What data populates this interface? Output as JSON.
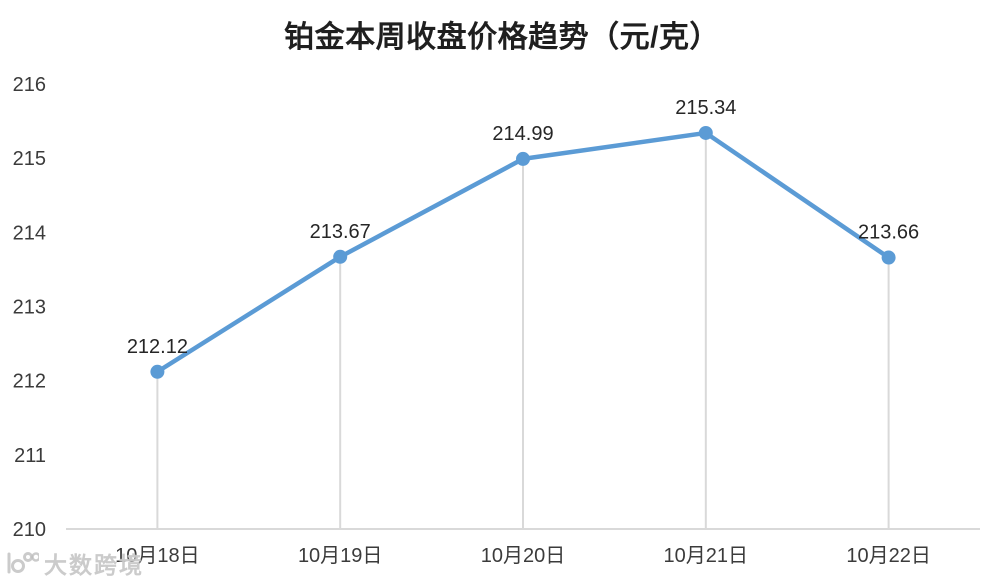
{
  "title": "铂金本周收盘价格趋势（元/克）",
  "watermark": {
    "icon": "brand-logo-icon",
    "label": "大数跨境"
  },
  "colors": {
    "line": "#5B9BD5",
    "marker": "#5B9BD5",
    "axis_line": "#D9D9D9",
    "dropline": "#D9D9D9",
    "data_label_text": "#262626",
    "tick_text": "#3b3b3b"
  },
  "chart_data": {
    "type": "line",
    "title": "铂金本周收盘价格趋势（元/克）",
    "categories": [
      "10月18日",
      "10月19日",
      "10月20日",
      "10月21日",
      "10月22日"
    ],
    "values": [
      212.12,
      213.67,
      214.99,
      215.34,
      213.66
    ],
    "data_labels": [
      "212.12",
      "213.67",
      "214.99",
      "215.34",
      "213.66"
    ],
    "y_ticks": [
      210,
      211,
      212,
      213,
      214,
      215,
      216
    ],
    "ylim": [
      210,
      216
    ],
    "xlabel": "",
    "ylabel": "",
    "grid": "vertical droplines from points to x-axis only, no horizontal gridlines",
    "legend": "none",
    "marker": "circle"
  }
}
